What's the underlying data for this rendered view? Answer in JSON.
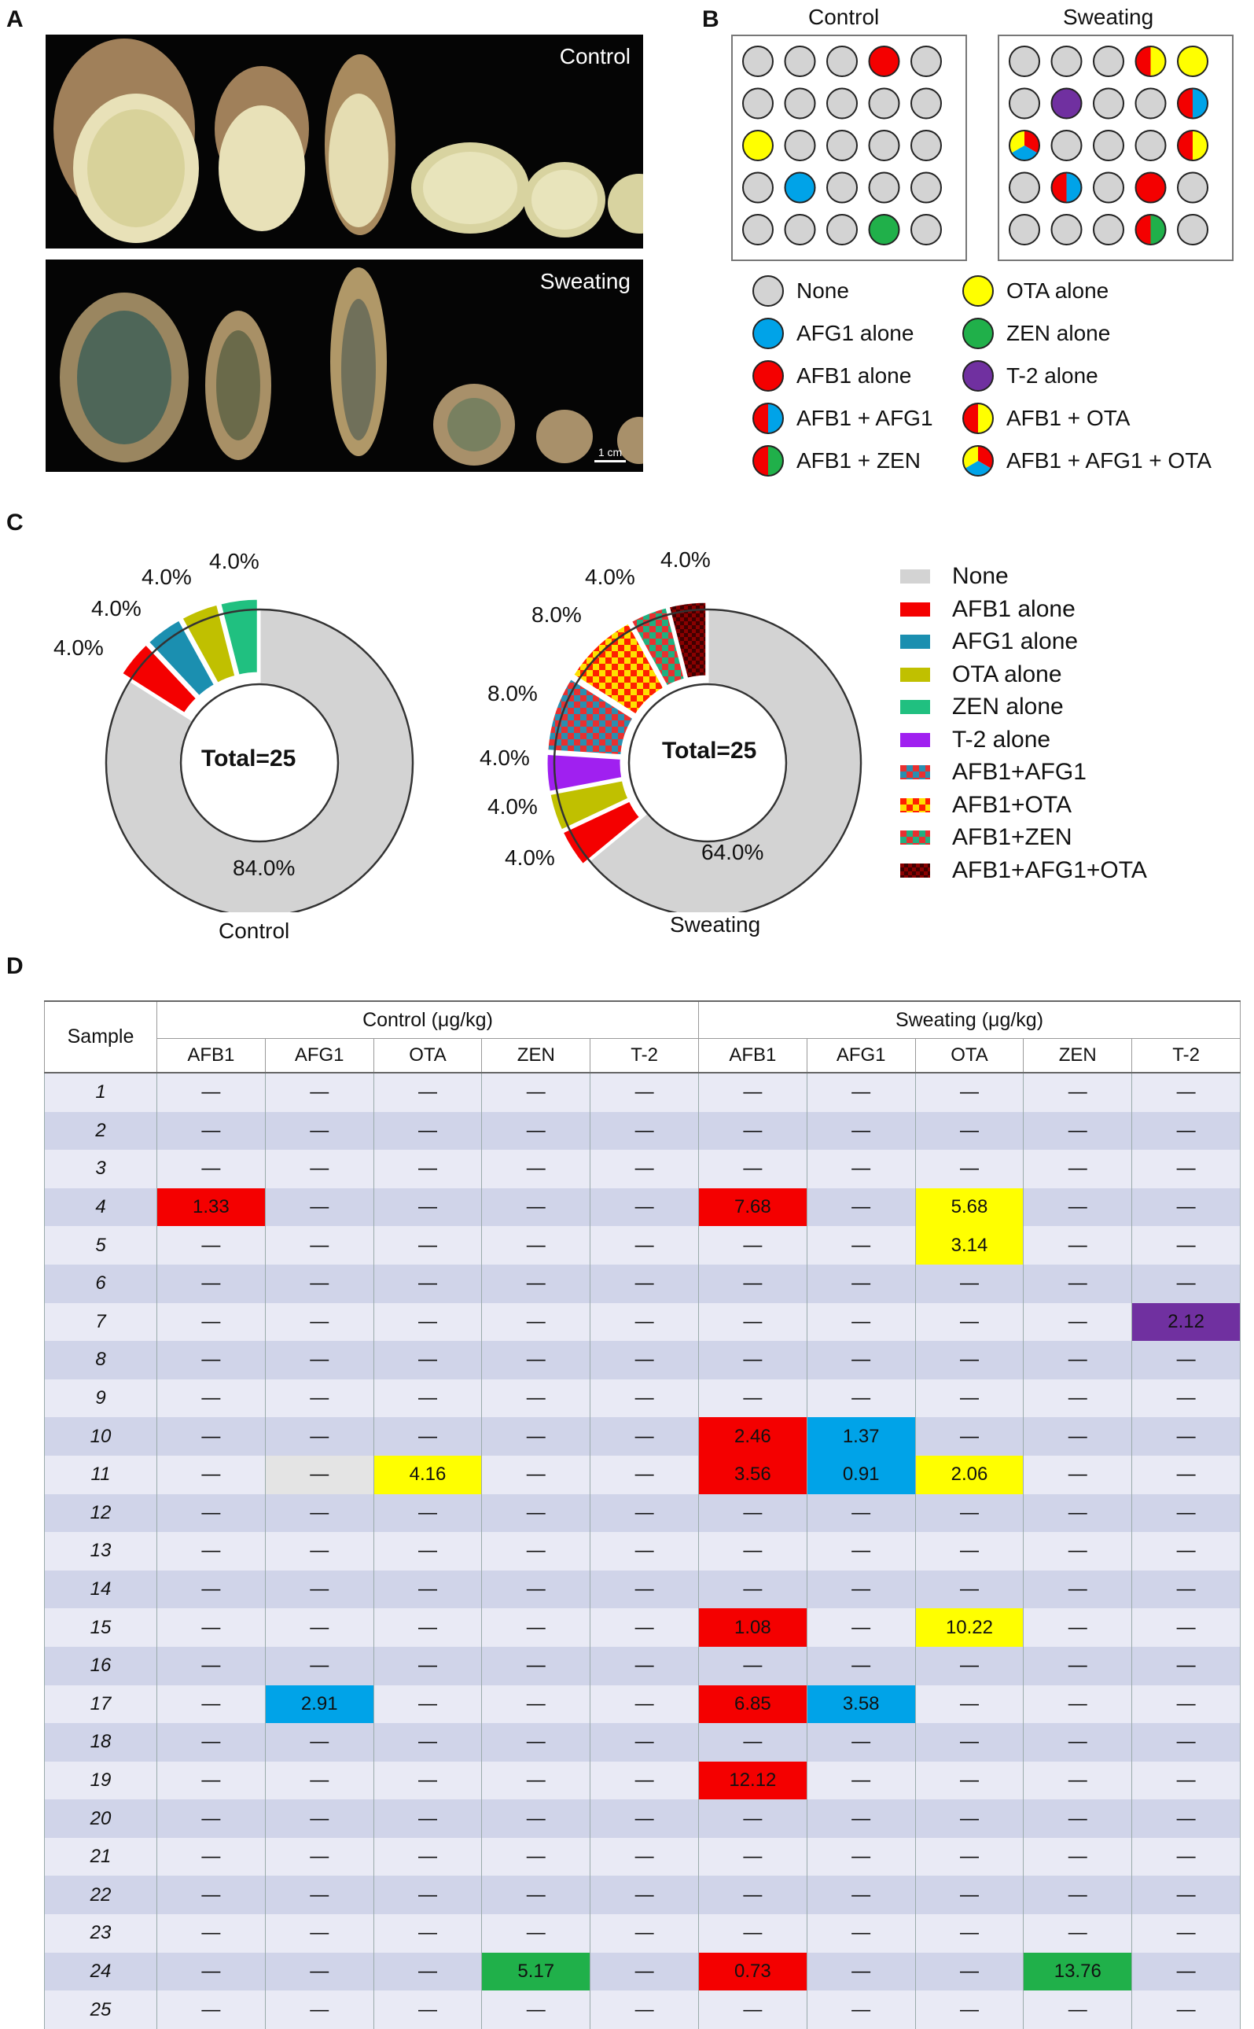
{
  "panels": {
    "a": "A",
    "b": "B",
    "c": "C",
    "d": "D"
  },
  "panel_a": {
    "control_label": "Control",
    "sweating_label": "Sweating",
    "scale_label": "1 cm"
  },
  "panel_b": {
    "control_title": "Control",
    "sweating_title": "Sweating",
    "control_grid": [
      [
        "none",
        "none",
        "none",
        "afb1",
        "none"
      ],
      [
        "none",
        "none",
        "none",
        "none",
        "none"
      ],
      [
        "ota",
        "none",
        "none",
        "none",
        "none"
      ],
      [
        "none",
        "afg1",
        "none",
        "none",
        "none"
      ],
      [
        "none",
        "none",
        "none",
        "zen",
        "none"
      ]
    ],
    "sweating_grid": [
      [
        "none",
        "none",
        "none",
        "afb1_ota",
        "ota"
      ],
      [
        "none",
        "t2",
        "none",
        "none",
        "afb1_afg1"
      ],
      [
        "afb1_afg1_ota",
        "none",
        "none",
        "none",
        "afb1_ota"
      ],
      [
        "none",
        "afb1_afg1",
        "none",
        "afb1",
        "none"
      ],
      [
        "none",
        "none",
        "none",
        "afb1_zen",
        "none"
      ]
    ],
    "legend": [
      {
        "key": "none",
        "label": "None"
      },
      {
        "key": "ota",
        "label": "OTA alone"
      },
      {
        "key": "afg1",
        "label": "AFG1 alone"
      },
      {
        "key": "zen",
        "label": "ZEN alone"
      },
      {
        "key": "afb1",
        "label": "AFB1 alone"
      },
      {
        "key": "t2",
        "label": "T-2 alone"
      },
      {
        "key": "afb1_afg1",
        "label": "AFB1 + AFG1"
      },
      {
        "key": "afb1_ota",
        "label": "AFB1 + OTA"
      },
      {
        "key": "afb1_zen",
        "label": "AFB1 + ZEN"
      },
      {
        "key": "afb1_afg1_ota",
        "label": "AFB1 + AFG1 + OTA"
      }
    ],
    "colors": {
      "none": "#d3d3d3",
      "afb1": "#f40000",
      "afg1": "#00a3e8",
      "ota": "#ffff00",
      "zen": "#20b04a",
      "t2": "#7030a0"
    }
  },
  "chart_data": [
    {
      "type": "pie",
      "title": "Control",
      "center_label": "Total=25",
      "categories": [
        "None",
        "AFB1 alone",
        "AFG1 alone",
        "OTA alone",
        "ZEN alone"
      ],
      "values": [
        84.0,
        4.0,
        4.0,
        4.0,
        4.0
      ],
      "labels": [
        "84.0%",
        "4.0%",
        "4.0%",
        "4.0%",
        "4.0%"
      ]
    },
    {
      "type": "pie",
      "title": "Sweating",
      "center_label": "Total=25",
      "categories": [
        "None",
        "AFB1 alone",
        "AFG1 alone",
        "OTA alone",
        "T-2 alone",
        "AFB1+AFG1",
        "AFB1+OTA",
        "AFB1+ZEN",
        "AFB1+AFG1+OTA"
      ],
      "values": [
        64.0,
        4.0,
        0,
        4.0,
        4.0,
        8.0,
        8.0,
        4.0,
        4.0
      ],
      "labels": [
        "64.0%",
        "4.0%",
        "",
        "4.0%",
        "4.0%",
        "8.0%",
        "8.0%",
        "4.0%",
        "4.0%"
      ]
    }
  ],
  "panel_c_legend": [
    {
      "label": "None",
      "color": "#d3d3d3"
    },
    {
      "label": "AFB1 alone",
      "color": "#f40000"
    },
    {
      "label": "AFG1 alone",
      "color": "#1b8fb0"
    },
    {
      "label": "OTA alone",
      "color": "#c0c000"
    },
    {
      "label": "ZEN alone",
      "color": "#20c080"
    },
    {
      "label": "T-2 alone",
      "color": "#a020f0"
    },
    {
      "label": "AFB1+AFG1",
      "color": "pat-afb1afg1"
    },
    {
      "label": "AFB1+OTA",
      "color": "pat-afb1ota"
    },
    {
      "label": "AFB1+ZEN",
      "color": "pat-afb1zen"
    },
    {
      "label": "AFB1+AFG1+OTA",
      "color": "pat-afb1afg1ota"
    }
  ],
  "table": {
    "sample_header": "Sample",
    "control_header": "Control (μg/kg)",
    "sweating_header": "Sweating (μg/kg)",
    "columns": [
      "AFB1",
      "AFG1",
      "OTA",
      "ZEN",
      "T-2",
      "AFB1",
      "AFG1",
      "OTA",
      "ZEN",
      "T-2"
    ],
    "rows": [
      {
        "s": "1",
        "v": [
          "—",
          "—",
          "—",
          "—",
          "—",
          "—",
          "—",
          "—",
          "—",
          "—"
        ],
        "c": [
          "",
          "",
          "",
          "",
          "",
          "",
          "",
          "",
          "",
          ""
        ]
      },
      {
        "s": "2",
        "v": [
          "—",
          "—",
          "—",
          "—",
          "—",
          "—",
          "—",
          "—",
          "—",
          "—"
        ],
        "c": [
          "",
          "",
          "",
          "",
          "",
          "",
          "",
          "",
          "",
          ""
        ]
      },
      {
        "s": "3",
        "v": [
          "—",
          "—",
          "—",
          "—",
          "—",
          "—",
          "—",
          "—",
          "—",
          "—"
        ],
        "c": [
          "",
          "",
          "",
          "",
          "",
          "",
          "",
          "",
          "",
          ""
        ]
      },
      {
        "s": "4",
        "v": [
          "1.33",
          "—",
          "—",
          "—",
          "—",
          "7.68",
          "—",
          "5.68",
          "—",
          "—"
        ],
        "c": [
          "red",
          "",
          "",
          "",
          "",
          "red",
          "",
          "yellow",
          "",
          ""
        ]
      },
      {
        "s": "5",
        "v": [
          "—",
          "—",
          "—",
          "—",
          "—",
          "—",
          "—",
          "3.14",
          "—",
          "—"
        ],
        "c": [
          "",
          "",
          "",
          "",
          "",
          "",
          "",
          "yellow",
          "",
          ""
        ]
      },
      {
        "s": "6",
        "v": [
          "—",
          "—",
          "—",
          "—",
          "—",
          "—",
          "—",
          "—",
          "—",
          "—"
        ],
        "c": [
          "",
          "",
          "",
          "",
          "",
          "",
          "",
          "",
          "",
          ""
        ]
      },
      {
        "s": "7",
        "v": [
          "—",
          "—",
          "—",
          "—",
          "—",
          "—",
          "—",
          "—",
          "—",
          "2.12"
        ],
        "c": [
          "",
          "",
          "",
          "",
          "",
          "",
          "",
          "",
          "",
          "purple"
        ]
      },
      {
        "s": "8",
        "v": [
          "—",
          "—",
          "—",
          "—",
          "—",
          "—",
          "—",
          "—",
          "—",
          "—"
        ],
        "c": [
          "",
          "",
          "",
          "",
          "",
          "",
          "",
          "",
          "",
          ""
        ]
      },
      {
        "s": "9",
        "v": [
          "—",
          "—",
          "—",
          "—",
          "—",
          "—",
          "—",
          "—",
          "—",
          "—"
        ],
        "c": [
          "",
          "",
          "",
          "",
          "",
          "",
          "",
          "",
          "",
          ""
        ]
      },
      {
        "s": "10",
        "v": [
          "—",
          "—",
          "—",
          "—",
          "—",
          "2.46",
          "1.37",
          "—",
          "—",
          "—"
        ],
        "c": [
          "",
          "",
          "",
          "",
          "",
          "red",
          "blue",
          "",
          "",
          ""
        ]
      },
      {
        "s": "11",
        "v": [
          "—",
          "—",
          "4.16",
          "—",
          "—",
          "3.56",
          "0.91",
          "2.06",
          "—",
          "—"
        ],
        "c": [
          "",
          "grey",
          "yellow",
          "",
          "",
          "red",
          "blue",
          "yellow",
          "",
          ""
        ]
      },
      {
        "s": "12",
        "v": [
          "—",
          "—",
          "—",
          "—",
          "—",
          "—",
          "—",
          "—",
          "—",
          "—"
        ],
        "c": [
          "",
          "",
          "",
          "",
          "",
          "",
          "",
          "",
          "",
          ""
        ]
      },
      {
        "s": "13",
        "v": [
          "—",
          "—",
          "—",
          "—",
          "—",
          "—",
          "—",
          "—",
          "—",
          "—"
        ],
        "c": [
          "",
          "",
          "",
          "",
          "",
          "",
          "",
          "",
          "",
          ""
        ]
      },
      {
        "s": "14",
        "v": [
          "—",
          "—",
          "—",
          "—",
          "—",
          "—",
          "—",
          "—",
          "—",
          "—"
        ],
        "c": [
          "",
          "",
          "",
          "",
          "",
          "",
          "",
          "",
          "",
          ""
        ]
      },
      {
        "s": "15",
        "v": [
          "—",
          "—",
          "—",
          "—",
          "—",
          "1.08",
          "—",
          "10.22",
          "—",
          "—"
        ],
        "c": [
          "",
          "",
          "",
          "",
          "",
          "red",
          "",
          "yellow",
          "",
          ""
        ]
      },
      {
        "s": "16",
        "v": [
          "—",
          "—",
          "—",
          "—",
          "—",
          "—",
          "—",
          "—",
          "—",
          "—"
        ],
        "c": [
          "",
          "",
          "",
          "",
          "",
          "",
          "",
          "",
          "",
          ""
        ]
      },
      {
        "s": "17",
        "v": [
          "—",
          "2.91",
          "—",
          "—",
          "—",
          "6.85",
          "3.58",
          "—",
          "—",
          "—"
        ],
        "c": [
          "",
          "blue",
          "",
          "",
          "",
          "red",
          "blue",
          "",
          "",
          ""
        ]
      },
      {
        "s": "18",
        "v": [
          "—",
          "—",
          "—",
          "—",
          "—",
          "—",
          "—",
          "—",
          "—",
          "—"
        ],
        "c": [
          "",
          "",
          "",
          "",
          "",
          "",
          "",
          "",
          "",
          ""
        ]
      },
      {
        "s": "19",
        "v": [
          "—",
          "—",
          "—",
          "—",
          "—",
          "12.12",
          "—",
          "—",
          "—",
          "—"
        ],
        "c": [
          "",
          "",
          "",
          "",
          "",
          "red",
          "",
          "",
          "",
          ""
        ]
      },
      {
        "s": "20",
        "v": [
          "—",
          "—",
          "—",
          "—",
          "—",
          "—",
          "—",
          "—",
          "—",
          "—"
        ],
        "c": [
          "",
          "",
          "",
          "",
          "",
          "",
          "",
          "",
          "",
          ""
        ]
      },
      {
        "s": "21",
        "v": [
          "—",
          "—",
          "—",
          "—",
          "—",
          "—",
          "—",
          "—",
          "—",
          "—"
        ],
        "c": [
          "",
          "",
          "",
          "",
          "",
          "",
          "",
          "",
          "",
          ""
        ]
      },
      {
        "s": "22",
        "v": [
          "—",
          "—",
          "—",
          "—",
          "—",
          "—",
          "—",
          "—",
          "—",
          "—"
        ],
        "c": [
          "",
          "",
          "",
          "",
          "",
          "",
          "",
          "",
          "",
          ""
        ]
      },
      {
        "s": "23",
        "v": [
          "—",
          "—",
          "—",
          "—",
          "—",
          "—",
          "—",
          "—",
          "—",
          "—"
        ],
        "c": [
          "",
          "",
          "",
          "",
          "",
          "",
          "",
          "",
          "",
          ""
        ]
      },
      {
        "s": "24",
        "v": [
          "—",
          "—",
          "—",
          "5.17",
          "—",
          "0.73",
          "—",
          "—",
          "13.76",
          "—"
        ],
        "c": [
          "",
          "",
          "",
          "green",
          "",
          "red",
          "",
          "",
          "green",
          ""
        ]
      },
      {
        "s": "25",
        "v": [
          "—",
          "—",
          "—",
          "—",
          "—",
          "—",
          "—",
          "—",
          "—",
          "—"
        ],
        "c": [
          "",
          "",
          "",
          "",
          "",
          "",
          "",
          "",
          "",
          ""
        ]
      }
    ]
  }
}
